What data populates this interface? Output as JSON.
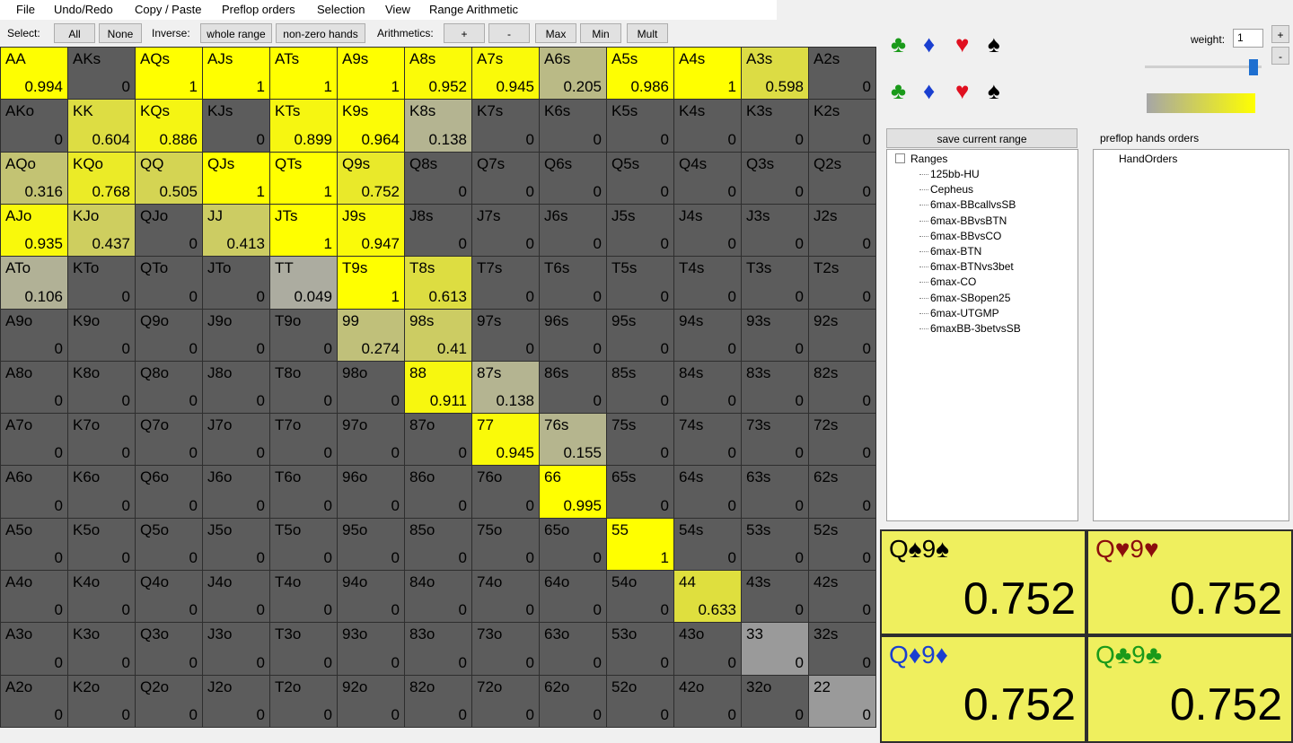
{
  "menu": [
    "File",
    "Undo/Redo",
    "Copy / Paste",
    "Preflop orders",
    "Selection",
    "View",
    "Range Arithmetic"
  ],
  "toolbar": {
    "select_label": "Select:",
    "all": "All",
    "none": "None",
    "inverse_label": "Inverse:",
    "whole_range": "whole range",
    "non_zero": "non-zero hands",
    "arith_label": "Arithmetics:",
    "plus": "+",
    "minus": "-",
    "max": "Max",
    "min": "Min",
    "mult": "Mult"
  },
  "grid": [
    [
      [
        "AA",
        0.994
      ],
      [
        "AKs",
        0
      ],
      [
        "AQs",
        1
      ],
      [
        "AJs",
        1
      ],
      [
        "ATs",
        1
      ],
      [
        "A9s",
        1
      ],
      [
        "A8s",
        0.952
      ],
      [
        "A7s",
        0.945
      ],
      [
        "A6s",
        0.205
      ],
      [
        "A5s",
        0.986
      ],
      [
        "A4s",
        1
      ],
      [
        "A3s",
        0.598
      ],
      [
        "A2s",
        0
      ]
    ],
    [
      [
        "AKo",
        0
      ],
      [
        "KK",
        0.604
      ],
      [
        "KQs",
        0.886
      ],
      [
        "KJs",
        0
      ],
      [
        "KTs",
        0.899
      ],
      [
        "K9s",
        0.964
      ],
      [
        "K8s",
        0.138
      ],
      [
        "K7s",
        0
      ],
      [
        "K6s",
        0
      ],
      [
        "K5s",
        0
      ],
      [
        "K4s",
        0
      ],
      [
        "K3s",
        0
      ],
      [
        "K2s",
        0
      ]
    ],
    [
      [
        "AQo",
        0.316
      ],
      [
        "KQo",
        0.768
      ],
      [
        "QQ",
        0.505
      ],
      [
        "QJs",
        1
      ],
      [
        "QTs",
        1
      ],
      [
        "Q9s",
        0.752
      ],
      [
        "Q8s",
        0
      ],
      [
        "Q7s",
        0
      ],
      [
        "Q6s",
        0
      ],
      [
        "Q5s",
        0
      ],
      [
        "Q4s",
        0
      ],
      [
        "Q3s",
        0
      ],
      [
        "Q2s",
        0
      ]
    ],
    [
      [
        "AJo",
        0.935
      ],
      [
        "KJo",
        0.437
      ],
      [
        "QJo",
        0
      ],
      [
        "JJ",
        0.413
      ],
      [
        "JTs",
        1
      ],
      [
        "J9s",
        0.947
      ],
      [
        "J8s",
        0
      ],
      [
        "J7s",
        0
      ],
      [
        "J6s",
        0
      ],
      [
        "J5s",
        0
      ],
      [
        "J4s",
        0
      ],
      [
        "J3s",
        0
      ],
      [
        "J2s",
        0
      ]
    ],
    [
      [
        "ATo",
        0.106
      ],
      [
        "KTo",
        0
      ],
      [
        "QTo",
        0
      ],
      [
        "JTo",
        0
      ],
      [
        "TT",
        0.049
      ],
      [
        "T9s",
        1
      ],
      [
        "T8s",
        0.613
      ],
      [
        "T7s",
        0
      ],
      [
        "T6s",
        0
      ],
      [
        "T5s",
        0
      ],
      [
        "T4s",
        0
      ],
      [
        "T3s",
        0
      ],
      [
        "T2s",
        0
      ]
    ],
    [
      [
        "A9o",
        0
      ],
      [
        "K9o",
        0
      ],
      [
        "Q9o",
        0
      ],
      [
        "J9o",
        0
      ],
      [
        "T9o",
        0
      ],
      [
        "99",
        0.274
      ],
      [
        "98s",
        0.41
      ],
      [
        "97s",
        0
      ],
      [
        "96s",
        0
      ],
      [
        "95s",
        0
      ],
      [
        "94s",
        0
      ],
      [
        "93s",
        0
      ],
      [
        "92s",
        0
      ]
    ],
    [
      [
        "A8o",
        0
      ],
      [
        "K8o",
        0
      ],
      [
        "Q8o",
        0
      ],
      [
        "J8o",
        0
      ],
      [
        "T8o",
        0
      ],
      [
        "98o",
        0
      ],
      [
        "88",
        0.911
      ],
      [
        "87s",
        0.138
      ],
      [
        "86s",
        0
      ],
      [
        "85s",
        0
      ],
      [
        "84s",
        0
      ],
      [
        "83s",
        0
      ],
      [
        "82s",
        0
      ]
    ],
    [
      [
        "A7o",
        0
      ],
      [
        "K7o",
        0
      ],
      [
        "Q7o",
        0
      ],
      [
        "J7o",
        0
      ],
      [
        "T7o",
        0
      ],
      [
        "97o",
        0
      ],
      [
        "87o",
        0
      ],
      [
        "77",
        0.945
      ],
      [
        "76s",
        0.155
      ],
      [
        "75s",
        0
      ],
      [
        "74s",
        0
      ],
      [
        "73s",
        0
      ],
      [
        "72s",
        0
      ]
    ],
    [
      [
        "A6o",
        0
      ],
      [
        "K6o",
        0
      ],
      [
        "Q6o",
        0
      ],
      [
        "J6o",
        0
      ],
      [
        "T6o",
        0
      ],
      [
        "96o",
        0
      ],
      [
        "86o",
        0
      ],
      [
        "76o",
        0
      ],
      [
        "66",
        0.995
      ],
      [
        "65s",
        0
      ],
      [
        "64s",
        0
      ],
      [
        "63s",
        0
      ],
      [
        "62s",
        0
      ]
    ],
    [
      [
        "A5o",
        0
      ],
      [
        "K5o",
        0
      ],
      [
        "Q5o",
        0
      ],
      [
        "J5o",
        0
      ],
      [
        "T5o",
        0
      ],
      [
        "95o",
        0
      ],
      [
        "85o",
        0
      ],
      [
        "75o",
        0
      ],
      [
        "65o",
        0
      ],
      [
        "55",
        1
      ],
      [
        "54s",
        0
      ],
      [
        "53s",
        0
      ],
      [
        "52s",
        0
      ]
    ],
    [
      [
        "A4o",
        0
      ],
      [
        "K4o",
        0
      ],
      [
        "Q4o",
        0
      ],
      [
        "J4o",
        0
      ],
      [
        "T4o",
        0
      ],
      [
        "94o",
        0
      ],
      [
        "84o",
        0
      ],
      [
        "74o",
        0
      ],
      [
        "64o",
        0
      ],
      [
        "54o",
        0
      ],
      [
        "44",
        0.633
      ],
      [
        "43s",
        0
      ],
      [
        "42s",
        0
      ]
    ],
    [
      [
        "A3o",
        0
      ],
      [
        "K3o",
        0
      ],
      [
        "Q3o",
        0
      ],
      [
        "J3o",
        0
      ],
      [
        "T3o",
        0
      ],
      [
        "93o",
        0
      ],
      [
        "83o",
        0
      ],
      [
        "73o",
        0
      ],
      [
        "63o",
        0
      ],
      [
        "53o",
        0
      ],
      [
        "43o",
        0
      ],
      [
        "33",
        0
      ],
      [
        "32s",
        0
      ]
    ],
    [
      [
        "A2o",
        0
      ],
      [
        "K2o",
        0
      ],
      [
        "Q2o",
        0
      ],
      [
        "J2o",
        0
      ],
      [
        "T2o",
        0
      ],
      [
        "92o",
        0
      ],
      [
        "82o",
        0
      ],
      [
        "72o",
        0
      ],
      [
        "62o",
        0
      ],
      [
        "52o",
        0
      ],
      [
        "42o",
        0
      ],
      [
        "32o",
        0
      ],
      [
        "22",
        0
      ]
    ]
  ],
  "suits": [
    {
      "symbol": "♣",
      "color": "#1a9a1a"
    },
    {
      "symbol": "♦",
      "color": "#1a3fd0"
    },
    {
      "symbol": "♥",
      "color": "#e01020"
    },
    {
      "symbol": "♠",
      "color": "#000000"
    }
  ],
  "weight": {
    "label": "weight:",
    "value": "1",
    "plus": "+",
    "minus": "-"
  },
  "save_button": "save current range",
  "orders_label": "preflop hands orders",
  "tree": {
    "root": "Ranges",
    "items": [
      "125bb-HU",
      "Cepheus",
      "6max-BBcallvsSB",
      "6max-BBvsBTN",
      "6max-BBvsCO",
      "6max-BTN",
      "6max-BTNvs3bet",
      "6max-CO",
      "6max-SBopen25",
      "6max-UTGMP",
      "6maxBB-3betvsSB"
    ]
  },
  "orders_tree": [
    "HandOrders"
  ],
  "combos": [
    {
      "hand": "Q♠9♠",
      "value": "0.752",
      "color": "#000000"
    },
    {
      "hand": "Q♥9♥",
      "value": "0.752",
      "color": "#8b0d0d"
    },
    {
      "hand": "Q♦9♦",
      "value": "0.752",
      "color": "#1a3fd0"
    },
    {
      "hand": "Q♣9♣",
      "value": "0.752",
      "color": "#1a9a1a"
    }
  ]
}
